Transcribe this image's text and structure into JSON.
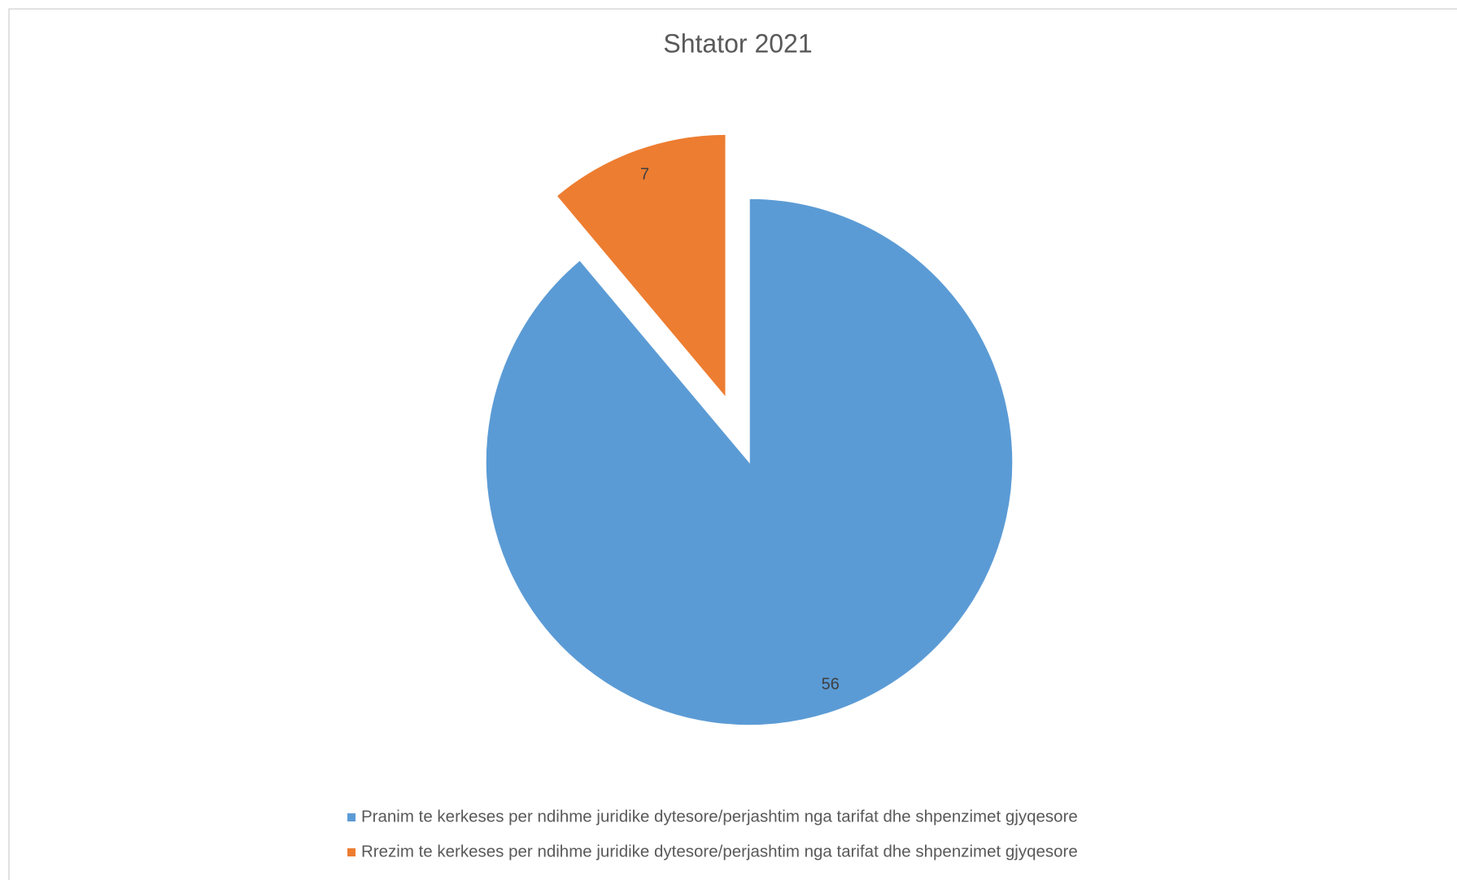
{
  "chart_data": {
    "type": "pie",
    "title": "Shtator 2021",
    "categories": [
      "Pranim te kerkeses per ndihme juridike dytesore/perjashtim nga tarifat dhe shpenzimet gjyqesore",
      "Rrezim te kerkeses per ndihme juridike dytesore/perjashtim nga tarifat dhe shpenzimet gjyqesore"
    ],
    "values": [
      56,
      7
    ],
    "colors": [
      "#5b9bd5",
      "#ed7d31"
    ],
    "exploded": [
      false,
      true
    ]
  }
}
